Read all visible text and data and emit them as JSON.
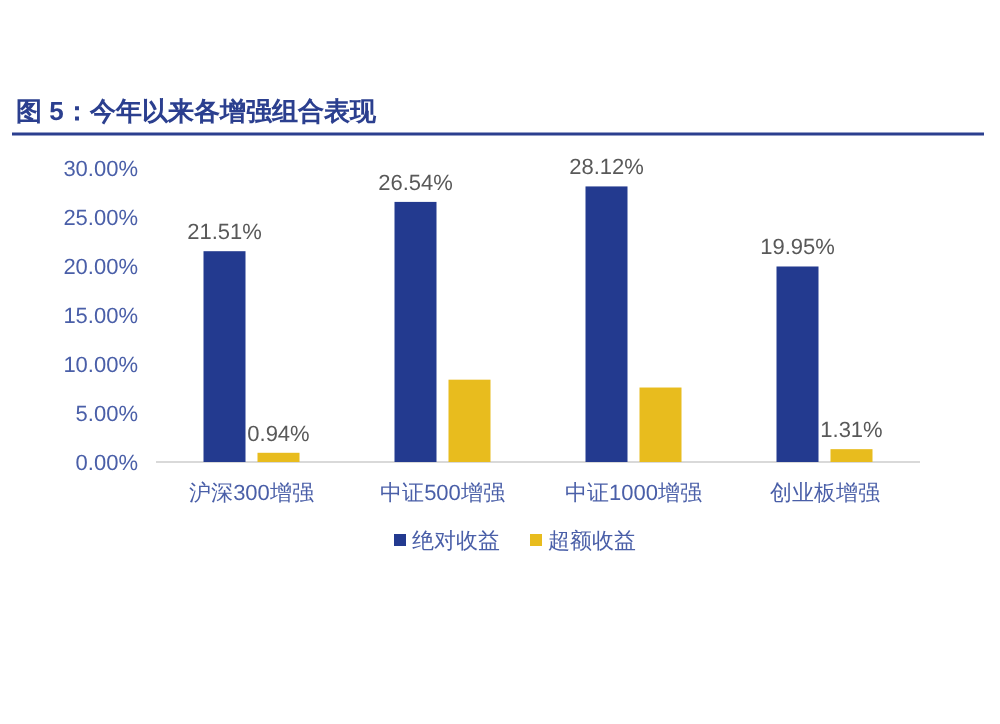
{
  "chart_data": {
    "type": "bar",
    "title": "图 5：今年以来各增强组合表现",
    "categories": [
      "沪深300增强",
      "中证500增强",
      "中证1000增强",
      "创业板增强"
    ],
    "series": [
      {
        "name": "绝对收益",
        "color": "#233a8f",
        "values": [
          21.51,
          26.54,
          28.12,
          19.95
        ],
        "value_labels": [
          "21.51%",
          "26.54%",
          "28.12%",
          "19.95%"
        ]
      },
      {
        "name": "超额收益",
        "color": "#e8bc1e",
        "values": [
          0.94,
          8.4,
          7.6,
          1.31
        ],
        "value_labels": [
          "0.94%",
          null,
          null,
          "1.31%"
        ]
      }
    ],
    "ylim": [
      0,
      30
    ],
    "yticks": [
      {
        "value": 0,
        "label": "0.00%"
      },
      {
        "value": 5,
        "label": "5.00%"
      },
      {
        "value": 10,
        "label": "10.00%"
      },
      {
        "value": 15,
        "label": "15.00%"
      },
      {
        "value": 20,
        "label": "20.00%"
      },
      {
        "value": 25,
        "label": "25.00%"
      },
      {
        "value": 30,
        "label": "30.00%"
      }
    ],
    "grid": false,
    "legend": "bottom"
  }
}
